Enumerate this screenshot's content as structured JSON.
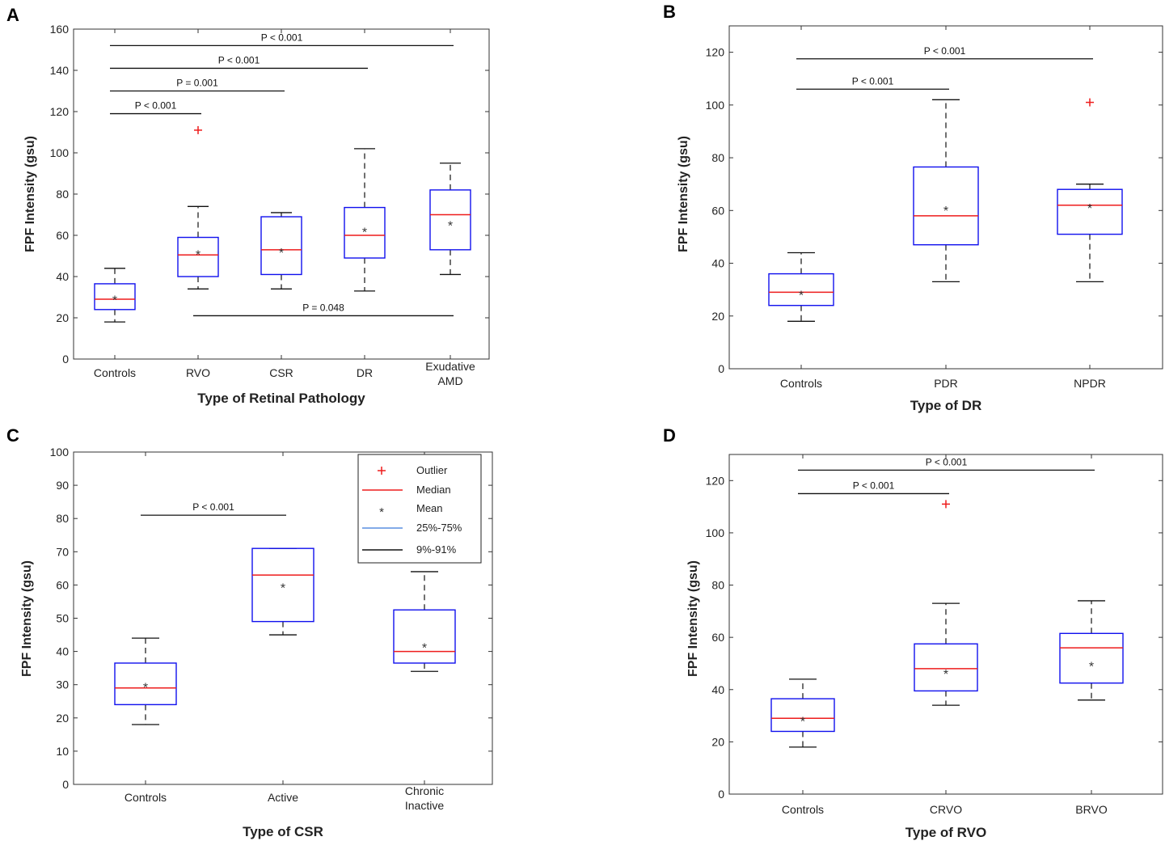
{
  "chart_data": [
    {
      "type": "box",
      "panel_label": "A",
      "title": "",
      "xlabel": "Type of Retinal Pathology",
      "ylabel": "FPF Intensity (gsu)",
      "ylim": [
        0,
        160
      ],
      "yticks": [
        0,
        20,
        40,
        60,
        80,
        100,
        120,
        140,
        160
      ],
      "categories": [
        [
          "Controls"
        ],
        [
          "RVO"
        ],
        [
          "CSR"
        ],
        [
          "DR"
        ],
        [
          "Exudative",
          "AMD"
        ]
      ],
      "boxes": [
        {
          "q1": 24,
          "median": 29,
          "q3": 36.5,
          "lo": 18,
          "hi": 44,
          "mean": 30,
          "outliers": []
        },
        {
          "q1": 40,
          "median": 50.5,
          "q3": 59,
          "lo": 34,
          "hi": 74,
          "mean": 52,
          "outliers": [
            111
          ]
        },
        {
          "q1": 41,
          "median": 53,
          "q3": 69,
          "lo": 34,
          "hi": 71,
          "mean": 53,
          "outliers": []
        },
        {
          "q1": 49,
          "median": 60,
          "q3": 73.5,
          "lo": 33,
          "hi": 102,
          "mean": 63,
          "outliers": []
        },
        {
          "q1": 53,
          "median": 70,
          "q3": 82,
          "lo": 41,
          "hi": 95,
          "mean": 66,
          "outliers": []
        }
      ],
      "comparisons": [
        {
          "from": 0,
          "to": 1,
          "y": 119,
          "label": "P < 0.001"
        },
        {
          "from": 0,
          "to": 2,
          "y": 130,
          "label": "P = 0.001"
        },
        {
          "from": 0,
          "to": 3,
          "y": 141,
          "label": "P < 0.001"
        },
        {
          "from": 0,
          "to": 4,
          "y": 152,
          "label": "P < 0.001"
        },
        {
          "from": 1,
          "to": 4,
          "y": 21,
          "label": "P = 0.048"
        }
      ]
    },
    {
      "type": "box",
      "panel_label": "B",
      "title": "",
      "xlabel": "Type of DR",
      "ylabel": "FPF Intensity (gsu)",
      "ylim": [
        0,
        130
      ],
      "yticks": [
        0,
        20,
        40,
        60,
        80,
        100,
        120
      ],
      "categories": [
        [
          "Controls"
        ],
        [
          "PDR"
        ],
        [
          "NPDR"
        ]
      ],
      "boxes": [
        {
          "q1": 24,
          "median": 29,
          "q3": 36,
          "lo": 18,
          "hi": 44,
          "mean": 29,
          "outliers": []
        },
        {
          "q1": 47,
          "median": 58,
          "q3": 76.5,
          "lo": 33,
          "hi": 102,
          "mean": 61,
          "outliers": []
        },
        {
          "q1": 51,
          "median": 62,
          "q3": 68,
          "lo": 33,
          "hi": 70,
          "mean": 62,
          "outliers": [
            101
          ]
        }
      ],
      "comparisons": [
        {
          "from": 0,
          "to": 1,
          "y": 106,
          "label": "P < 0.001"
        },
        {
          "from": 0,
          "to": 2,
          "y": 117.5,
          "label": "P < 0.001"
        }
      ]
    },
    {
      "type": "box",
      "panel_label": "C",
      "title": "",
      "xlabel": "Type of CSR",
      "ylabel": "FPF Intensity (gsu)",
      "ylim": [
        0,
        100
      ],
      "yticks": [
        0,
        10,
        20,
        30,
        40,
        50,
        60,
        70,
        80,
        90,
        100
      ],
      "categories": [
        [
          "Controls"
        ],
        [
          "Active"
        ],
        [
          "Chronic",
          "Inactive"
        ]
      ],
      "boxes": [
        {
          "q1": 24,
          "median": 29,
          "q3": 36.5,
          "lo": 18,
          "hi": 44,
          "mean": 30,
          "outliers": []
        },
        {
          "q1": 49,
          "median": 63,
          "q3": 71,
          "lo": 45,
          "hi": 71,
          "mean": 60,
          "outliers": []
        },
        {
          "q1": 36.5,
          "median": 40,
          "q3": 52.5,
          "lo": 34,
          "hi": 64,
          "mean": 42,
          "outliers": []
        }
      ],
      "comparisons": [
        {
          "from": 0,
          "to": 1,
          "y": 81,
          "label": "P < 0.001"
        }
      ],
      "legend": {
        "position": "top-right",
        "entries": [
          "Outlier",
          "Median",
          "Mean",
          "25%-75%",
          "9%-91%"
        ]
      }
    },
    {
      "type": "box",
      "panel_label": "D",
      "title": "",
      "xlabel": "Type of RVO",
      "ylabel": "FPF Intensity (gsu)",
      "ylim": [
        0,
        130
      ],
      "yticks": [
        0,
        20,
        40,
        60,
        80,
        100,
        120
      ],
      "categories": [
        [
          "Controls"
        ],
        [
          "CRVO"
        ],
        [
          "BRVO"
        ]
      ],
      "boxes": [
        {
          "q1": 24,
          "median": 29,
          "q3": 36.5,
          "lo": 18,
          "hi": 44,
          "mean": 29,
          "outliers": []
        },
        {
          "q1": 39.5,
          "median": 48,
          "q3": 57.5,
          "lo": 34,
          "hi": 73,
          "mean": 47,
          "outliers": [
            111
          ]
        },
        {
          "q1": 42.5,
          "median": 56,
          "q3": 61.5,
          "lo": 36,
          "hi": 74,
          "mean": 50,
          "outliers": []
        }
      ],
      "comparisons": [
        {
          "from": 0,
          "to": 1,
          "y": 115,
          "label": "P < 0.001"
        },
        {
          "from": 0,
          "to": 2,
          "y": 124,
          "label": "P < 0.001"
        }
      ]
    }
  ],
  "colors": {
    "box": "#1010ee",
    "median": "#ee1c1c",
    "outlier": "#ee1c1c",
    "whisker": "#111111",
    "axis": "#333333"
  }
}
